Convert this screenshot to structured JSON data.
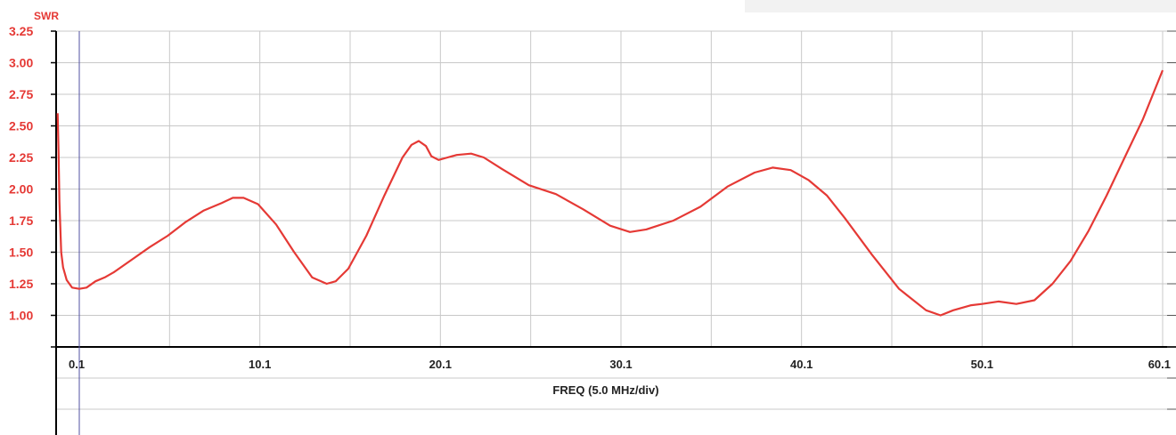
{
  "chart_data": {
    "type": "line",
    "ylabel": "SWR",
    "xlabel": "FREQ (5.0 MHz/div)",
    "xlim": [
      0.1,
      60.1
    ],
    "ylim": [
      0.75,
      3.25
    ],
    "y_ticks": [
      "3.25",
      "3.00",
      "2.75",
      "2.50",
      "2.25",
      "2.00",
      "1.75",
      "1.50",
      "1.25",
      "1.00"
    ],
    "x_ticks": [
      "0.1",
      "10.1",
      "20.1",
      "30.1",
      "40.1",
      "50.1",
      "60.1"
    ],
    "grid": true,
    "marker_x": 0.1,
    "colors": {
      "line": "#e53935",
      "marker": "#5050a0",
      "grid": "#c8c8c8"
    },
    "series": [
      {
        "x": [
          -1.1,
          -1.05,
          -1.0,
          -0.9,
          -0.8,
          -0.6,
          -0.3,
          0.1,
          0.5,
          1.0,
          1.5,
          2.0,
          3.0,
          4.0,
          5.0,
          6.0,
          7.0,
          8.0,
          8.6,
          9.2,
          10.0,
          11.0,
          12.0,
          13.0,
          13.8,
          14.3,
          15.0,
          16.0,
          17.0,
          18.0,
          18.5,
          18.9,
          19.3,
          19.6,
          20.0,
          20.5,
          21.0,
          21.8,
          22.5,
          23.5,
          25.0,
          26.5,
          28.0,
          29.5,
          30.6,
          31.5,
          33.0,
          34.5,
          36.0,
          37.5,
          38.5,
          39.5,
          40.5,
          41.5,
          42.5,
          44.0,
          45.5,
          47.0,
          47.8,
          48.5,
          49.5,
          50.1,
          51.0,
          52.0,
          53.0,
          54.0,
          55.0,
          56.0,
          57.0,
          58.0,
          59.0,
          60.1
        ],
        "y": [
          2.6,
          2.3,
          1.9,
          1.5,
          1.38,
          1.28,
          1.22,
          1.21,
          1.22,
          1.27,
          1.3,
          1.34,
          1.44,
          1.54,
          1.63,
          1.74,
          1.83,
          1.89,
          1.93,
          1.93,
          1.88,
          1.72,
          1.5,
          1.3,
          1.25,
          1.27,
          1.37,
          1.63,
          1.95,
          2.25,
          2.35,
          2.38,
          2.34,
          2.26,
          2.23,
          2.25,
          2.27,
          2.28,
          2.25,
          2.16,
          2.03,
          1.96,
          1.84,
          1.71,
          1.66,
          1.68,
          1.75,
          1.86,
          2.02,
          2.13,
          2.17,
          2.15,
          2.07,
          1.95,
          1.77,
          1.48,
          1.21,
          1.04,
          1.0,
          1.04,
          1.08,
          1.09,
          1.11,
          1.09,
          1.12,
          1.25,
          1.43,
          1.67,
          1.95,
          2.25,
          2.55,
          2.94
        ]
      }
    ]
  }
}
